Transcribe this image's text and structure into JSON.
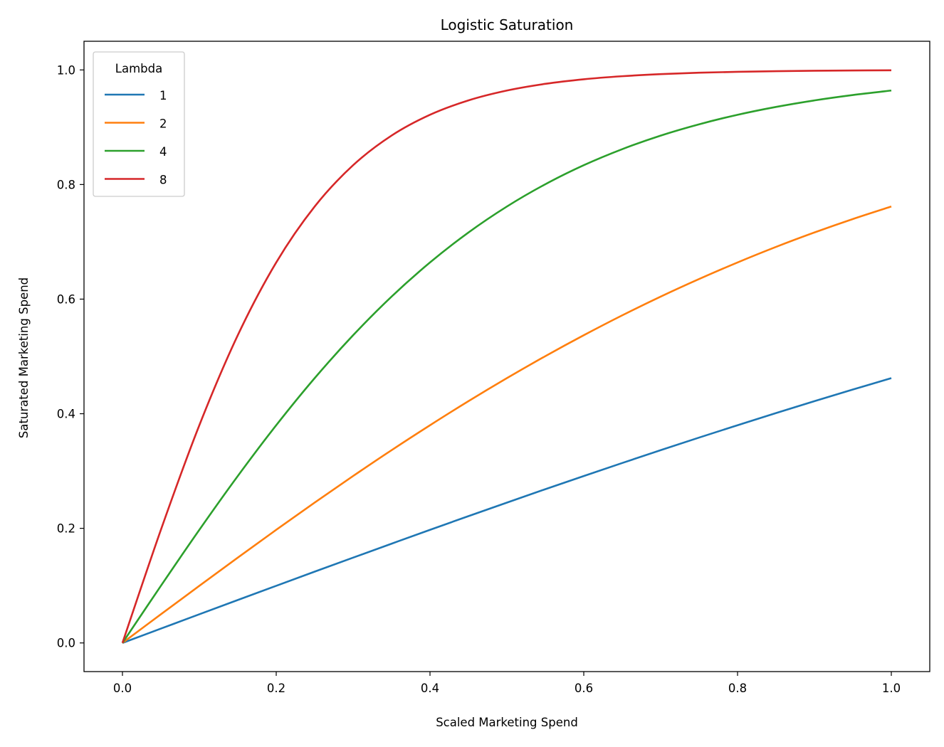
{
  "chart_data": {
    "type": "line",
    "title": "Logistic Saturation",
    "xlabel": "Scaled Marketing Spend",
    "ylabel": "Saturated Marketing Spend",
    "xlim": [
      -0.05,
      1.05
    ],
    "ylim": [
      -0.05,
      1.05
    ],
    "xticks": [
      0.0,
      0.2,
      0.4,
      0.6,
      0.8,
      1.0
    ],
    "xtick_labels": [
      "0.0",
      "0.2",
      "0.4",
      "0.6",
      "0.8",
      "1.0"
    ],
    "yticks": [
      0.0,
      0.2,
      0.4,
      0.6,
      0.8,
      1.0
    ],
    "ytick_labels": [
      "0.0",
      "0.2",
      "0.4",
      "0.6",
      "0.8",
      "1.0"
    ],
    "grid": false,
    "legend": {
      "title": "Lambda",
      "placement": "top-left"
    },
    "x": [
      0,
      0.05,
      0.1,
      0.15,
      0.2,
      0.25,
      0.3,
      0.35,
      0.4,
      0.45,
      0.5,
      0.55,
      0.6,
      0.65,
      0.7,
      0.75,
      0.8,
      0.85,
      0.9,
      0.95,
      1.0
    ],
    "series": [
      {
        "name": "1",
        "color": "#1f77b4",
        "values": [
          0,
          0.025,
          0.05,
          0.0749,
          0.0997,
          0.1244,
          0.1489,
          0.1732,
          0.1974,
          0.2213,
          0.2449,
          0.2683,
          0.2913,
          0.314,
          0.3364,
          0.3584,
          0.3799,
          0.4012,
          0.4219,
          0.4422,
          0.4621
        ]
      },
      {
        "name": "2",
        "color": "#ff7f0e",
        "values": [
          0,
          0.05,
          0.0997,
          0.1489,
          0.1974,
          0.2449,
          0.2913,
          0.3364,
          0.3799,
          0.4219,
          0.4621,
          0.5005,
          0.537,
          0.5717,
          0.6044,
          0.6351,
          0.664,
          0.6911,
          0.7163,
          0.7398,
          0.7616
        ]
      },
      {
        "name": "4",
        "color": "#2ca02c",
        "values": [
          0,
          0.0997,
          0.1974,
          0.2913,
          0.3799,
          0.4621,
          0.537,
          0.6044,
          0.664,
          0.7163,
          0.7616,
          0.8005,
          0.8337,
          0.8617,
          0.8854,
          0.9051,
          0.9217,
          0.9354,
          0.9468,
          0.9562,
          0.964
        ]
      },
      {
        "name": "8",
        "color": "#d62728",
        "values": [
          0,
          0.1974,
          0.3799,
          0.537,
          0.664,
          0.7616,
          0.8337,
          0.8854,
          0.9217,
          0.9468,
          0.964,
          0.9757,
          0.9837,
          0.989,
          0.9926,
          0.9951,
          0.9967,
          0.9978,
          0.9985,
          0.999,
          0.9993
        ]
      }
    ]
  }
}
